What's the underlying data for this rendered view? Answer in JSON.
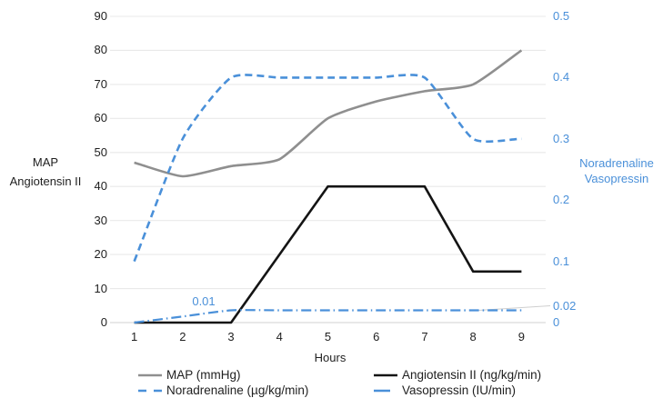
{
  "chart_data": {
    "type": "line",
    "x_categories": [
      "1",
      "2",
      "3",
      "4",
      "5",
      "6",
      "7",
      "8",
      "9"
    ],
    "xlabel": "Hours",
    "grid": true,
    "legend_position": "bottom",
    "left_axis": {
      "title_lines": [
        "MAP",
        "Angiotensin II"
      ],
      "min": 0,
      "max": 90,
      "step": 10,
      "ticks": [
        "0",
        "10",
        "20",
        "30",
        "40",
        "50",
        "60",
        "70",
        "80",
        "90"
      ],
      "text_color": "#1f1f1f"
    },
    "right_axis": {
      "title_lines": [
        "Noradrenaline",
        "Vasopressin"
      ],
      "min": 0,
      "max": 0.5,
      "step": 0.1,
      "ticks": [
        "0",
        "0.1",
        "0.2",
        "0.3",
        "0.4",
        "0.5"
      ],
      "text_color": "#4a90d9"
    },
    "series": [
      {
        "name": "MAP (mmHg)",
        "axis": "left",
        "color": "#8f8f8f",
        "style": "solid",
        "dash": "",
        "width": 2.6,
        "smooth": true,
        "values": [
          47,
          43,
          46,
          48,
          60,
          65,
          68,
          70,
          80
        ]
      },
      {
        "name": "Angiotensin II (ng/kg/min)",
        "axis": "left",
        "color": "#141414",
        "style": "solid",
        "dash": "",
        "width": 2.6,
        "smooth": false,
        "values": [
          0,
          0,
          0,
          20,
          40,
          40,
          40,
          15,
          15
        ]
      },
      {
        "name": "Noradrenaline (µg/kg/min)",
        "axis": "right",
        "color": "#4a90d9",
        "style": "dashed",
        "dash": "8 5",
        "legend_dash": "9 8",
        "width": 2.6,
        "smooth": true,
        "values": [
          0.1,
          0.3,
          0.4,
          0.4,
          0.4,
          0.4,
          0.4,
          0.3,
          0.3
        ]
      },
      {
        "name": "Vasopressin (IU/min)",
        "axis": "right",
        "color": "#4a90d9",
        "style": "dashdot",
        "dash": "11 4 1.5 4",
        "legend_dash": "",
        "width": 2.2,
        "smooth": true,
        "values": [
          0,
          0.01,
          0.02,
          0.02,
          0.02,
          0.02,
          0.02,
          0.02,
          0.02
        ]
      }
    ],
    "annotations": [
      {
        "text": "0.01",
        "series": "Vasopressin (IU/min)",
        "hour": 2.4,
        "value": 0.01,
        "leader": false
      },
      {
        "text": "0.02",
        "series": "Vasopressin (IU/min)",
        "hour": 9,
        "value": 0.02,
        "leader": true
      }
    ]
  },
  "colors": {
    "blue": "#4a90d9",
    "gray_series": "#8f8f8f",
    "black_series": "#141414",
    "gridline": "#e9e9e9",
    "baseline": "#d2d2d2",
    "leader_line": "#cfcfcf"
  }
}
